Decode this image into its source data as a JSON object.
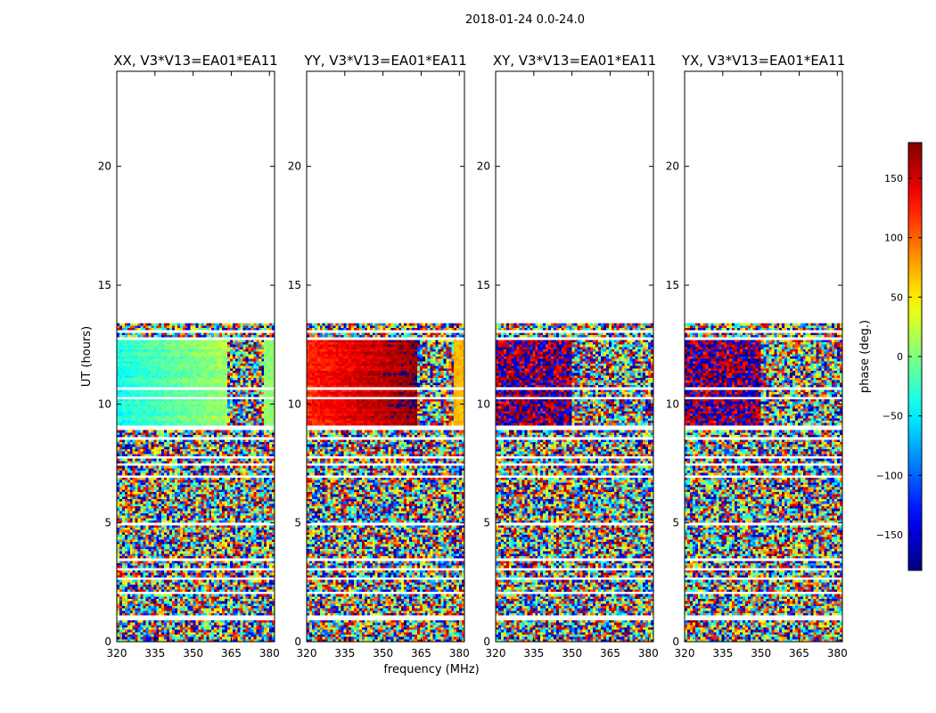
{
  "figure": {
    "suptitle": "2018-01-24 0.0-24.0"
  },
  "chart_data": {
    "type": "heatmap",
    "title": "2018-01-24 0.0-24.0",
    "xlabel": "frequency (MHz)",
    "ylabel": "UT (hours)",
    "xlim": [
      320,
      382
    ],
    "ylim": [
      0,
      24
    ],
    "xticks": [
      "320",
      "335",
      "350",
      "365",
      "380"
    ],
    "yticks": [
      "0",
      "5",
      "10",
      "15",
      "20"
    ],
    "panels": [
      {
        "title": "XX, V3*V13=EA01*EA11",
        "polarization": "XX",
        "mean_phase_calibrated_deg": -20,
        "mean_phase_high_freq_deg": 5
      },
      {
        "title": "YY, V3*V13=EA01*EA11",
        "polarization": "YY",
        "mean_phase_calibrated_deg": 140,
        "mean_phase_high_freq_deg": 70
      },
      {
        "title": "XY, V3*V13=EA01*EA11",
        "polarization": "XY",
        "mean_phase_calibrated_deg": null,
        "mean_phase_high_freq_deg": null
      },
      {
        "title": "YX, V3*V13=EA01*EA11",
        "polarization": "YX",
        "mean_phase_calibrated_deg": null,
        "mean_phase_high_freq_deg": null
      }
    ],
    "colorbar": {
      "label": "phase (deg.)",
      "range": [
        -180,
        180
      ],
      "ticks": [
        "150",
        "100",
        "50",
        "0",
        "−50",
        "−100",
        "−150"
      ],
      "colormap": "jet"
    },
    "data_extent_hours": [
      0,
      13.4
    ],
    "calibrated_block_hours": [
      9.0,
      12.7
    ],
    "colors": {
      "axis": "#000000",
      "background": "#ffffff",
      "blank": "#ffffff"
    }
  }
}
